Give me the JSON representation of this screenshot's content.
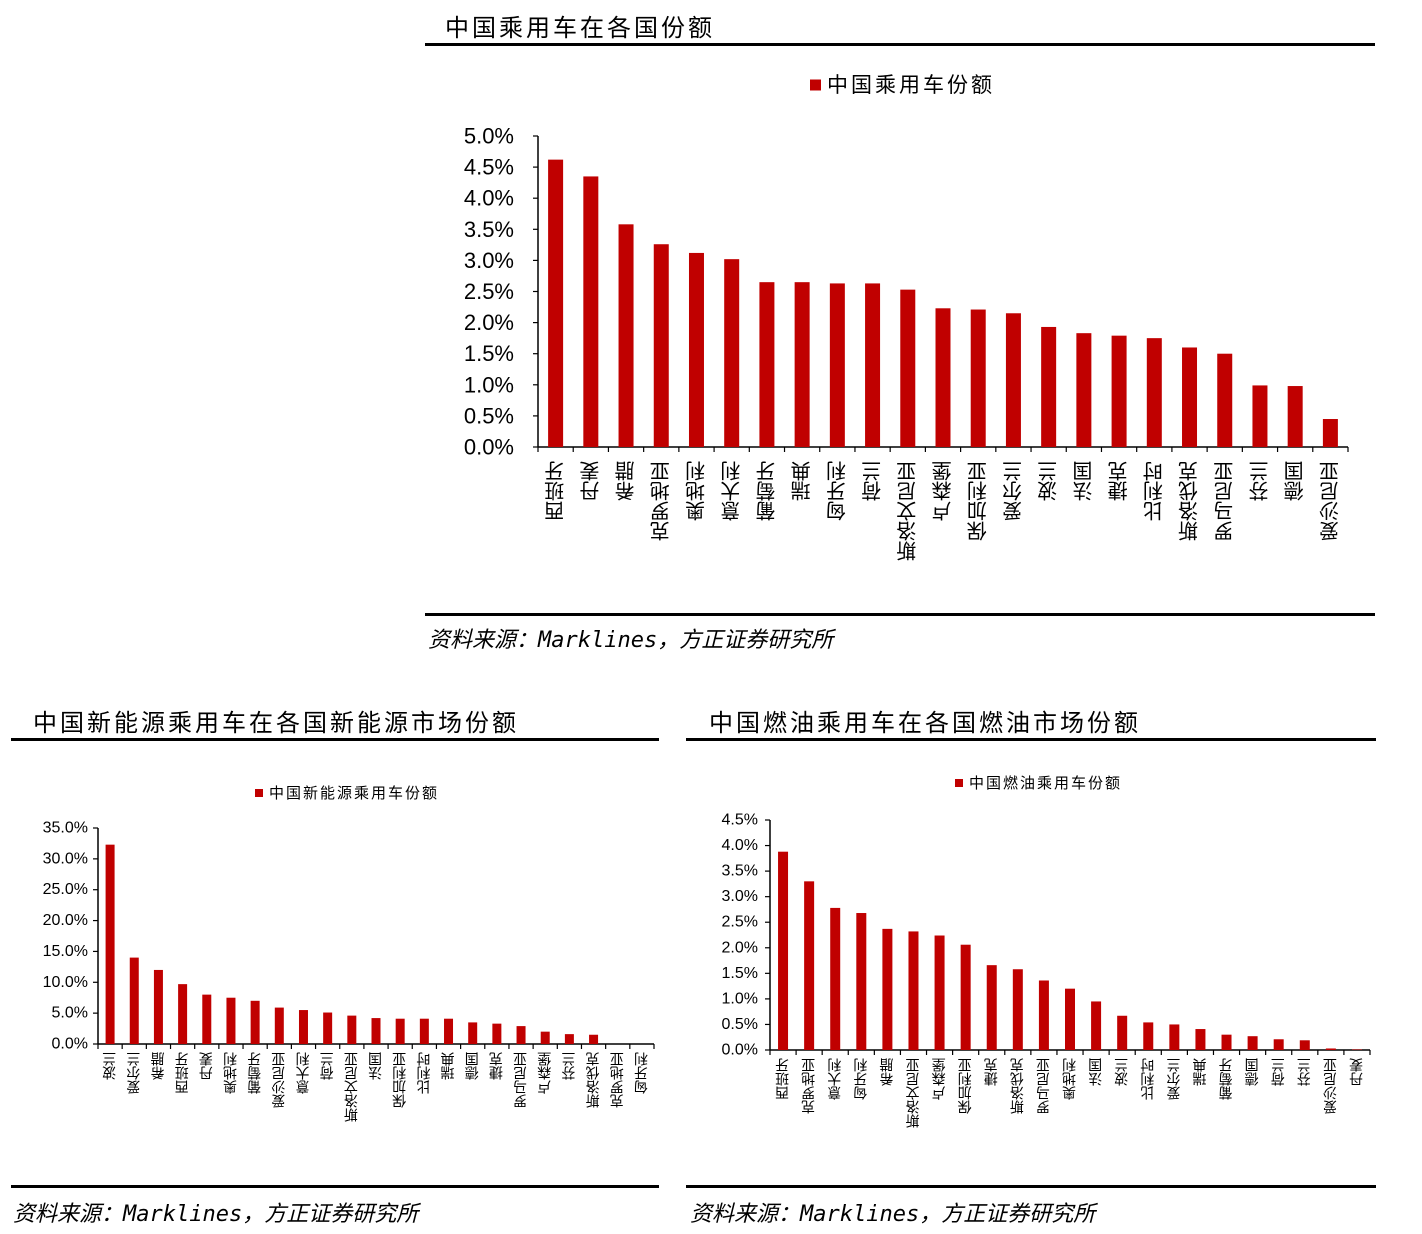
{
  "colors": {
    "bar": "#C00000",
    "rule": "#000000",
    "axis": "#000000"
  },
  "chart_data": [
    {
      "type": "bar",
      "title": "中国乘用车在各国份额",
      "legend": "中国乘用车份额",
      "legend_position": "top-center",
      "source": "资料来源：Marklines，方正证券研究所",
      "categories": [
        "西班牙",
        "丹麦",
        "希腊",
        "克罗地亚",
        "奥地利",
        "意大利",
        "葡萄牙",
        "瑞典",
        "匈牙利",
        "荷兰",
        "斯洛文尼亚",
        "卢森堡",
        "保加利亚",
        "爱尔兰",
        "波兰",
        "法国",
        "捷克",
        "比利时",
        "斯洛伐克",
        "罗马尼亚",
        "芬兰",
        "德国",
        "爱沙尼亚"
      ],
      "values": [
        4.62,
        4.35,
        3.58,
        3.26,
        3.12,
        3.02,
        2.65,
        2.65,
        2.63,
        2.63,
        2.53,
        2.23,
        2.21,
        2.15,
        1.93,
        1.83,
        1.79,
        1.75,
        1.6,
        1.5,
        0.99,
        0.98,
        0.45
      ],
      "yticks": [
        "0.0%",
        "0.5%",
        "1.0%",
        "1.5%",
        "2.0%",
        "2.5%",
        "3.0%",
        "3.5%",
        "4.0%",
        "4.5%",
        "5.0%"
      ],
      "ylim": [
        0,
        5
      ],
      "grid": false
    },
    {
      "type": "bar",
      "title": "中国新能源乘用车在各国新能源市场份额",
      "legend": "中国新能源乘用车份额",
      "legend_position": "top-center",
      "source": "资料来源：Marklines，方正证券研究所",
      "categories": [
        "波兰",
        "爱尔兰",
        "希腊",
        "西班牙",
        "丹麦",
        "奥地利",
        "葡萄牙",
        "爱沙尼亚",
        "意大利",
        "荷兰",
        "斯洛文尼亚",
        "法国",
        "保加利亚",
        "比利时",
        "瑞典",
        "德国",
        "捷克",
        "罗马尼亚",
        "卢森堡",
        "芬兰",
        "斯洛伐克",
        "克罗地亚",
        "匈牙利"
      ],
      "values": [
        32.3,
        14.0,
        12.0,
        9.7,
        8.0,
        7.5,
        7.0,
        5.9,
        5.5,
        5.1,
        4.6,
        4.2,
        4.1,
        4.1,
        4.1,
        3.5,
        3.3,
        2.9,
        2.0,
        1.6,
        1.5,
        0.0,
        0.0
      ],
      "yticks": [
        "0.0%",
        "5.0%",
        "10.0%",
        "15.0%",
        "20.0%",
        "25.0%",
        "30.0%",
        "35.0%"
      ],
      "ylim": [
        0,
        35
      ],
      "grid": false
    },
    {
      "type": "bar",
      "title": "中国燃油乘用车在各国燃油市场份额",
      "legend": "中国燃油乘用车份额",
      "legend_position": "top-center",
      "source": "资料来源：Marklines，方正证券研究所",
      "categories": [
        "西班牙",
        "克罗地亚",
        "意大利",
        "匈牙利",
        "希腊",
        "斯洛文尼亚",
        "卢森堡",
        "保加利亚",
        "捷克",
        "斯洛伐克",
        "罗马尼亚",
        "奥地利",
        "法国",
        "波兰",
        "比利时",
        "爱尔兰",
        "瑞典",
        "葡萄牙",
        "德国",
        "荷兰",
        "芬兰",
        "爱沙尼亚",
        "丹麦"
      ],
      "values": [
        3.88,
        3.3,
        2.78,
        2.68,
        2.37,
        2.32,
        2.24,
        2.06,
        1.66,
        1.58,
        1.36,
        1.2,
        0.95,
        0.67,
        0.54,
        0.5,
        0.41,
        0.3,
        0.27,
        0.21,
        0.19,
        0.03,
        0.01
      ],
      "yticks": [
        "0.0%",
        "0.5%",
        "1.0%",
        "1.5%",
        "2.0%",
        "2.5%",
        "3.0%",
        "3.5%",
        "4.0%",
        "4.5%"
      ],
      "ylim": [
        0,
        4.5
      ],
      "grid": false
    }
  ]
}
